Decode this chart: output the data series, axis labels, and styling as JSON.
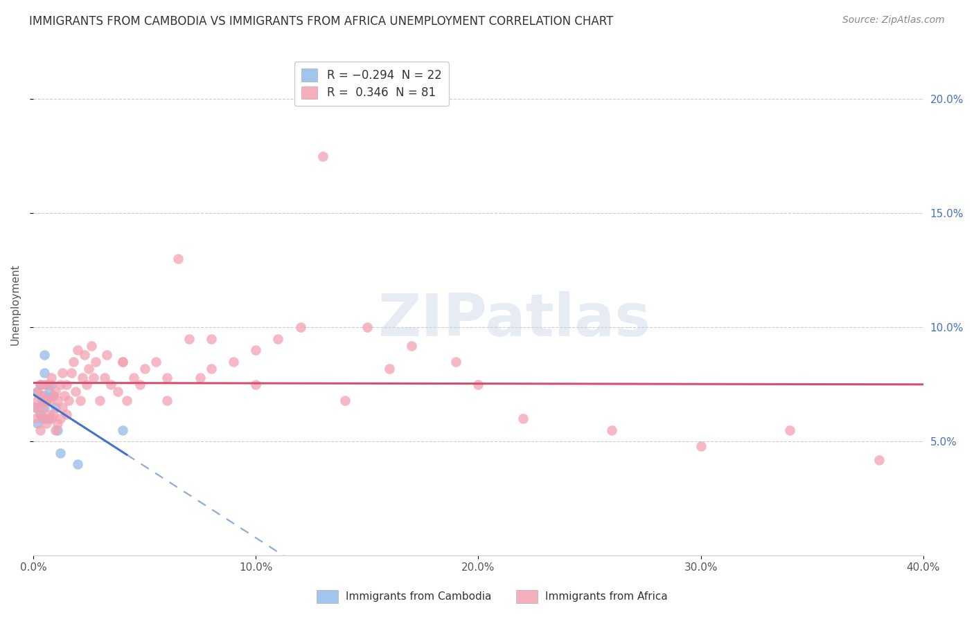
{
  "title": "IMMIGRANTS FROM CAMBODIA VS IMMIGRANTS FROM AFRICA UNEMPLOYMENT CORRELATION CHART",
  "source": "Source: ZipAtlas.com",
  "ylabel": "Unemployment",
  "xlim": [
    0.0,
    0.4
  ],
  "ylim": [
    0.0,
    0.22
  ],
  "yticks": [
    0.05,
    0.1,
    0.15,
    0.2
  ],
  "ytick_labels": [
    "5.0%",
    "10.0%",
    "15.0%",
    "20.0%"
  ],
  "xticks": [
    0.0,
    0.1,
    0.2,
    0.3,
    0.4
  ],
  "xtick_labels": [
    "0.0%",
    "10.0%",
    "20.0%",
    "30.0%",
    "40.0%"
  ],
  "legend_label_cambodia": "R = −0.294  N = 22",
  "legend_label_africa": "R =  0.346  N = 81",
  "R_cambodia": -0.294,
  "R_africa": 0.346,
  "cambodia_color": "#92bce8",
  "africa_color": "#f4a0b0",
  "line_cambodia_color": "#4472c4",
  "line_africa_color": "#d45070",
  "watermark": "ZIPatlas",
  "title_fontsize": 12,
  "source_fontsize": 10,
  "tick_fontsize": 11,
  "legend_fontsize": 12,
  "ylabel_fontsize": 11,
  "cambodia_x": [
    0.001,
    0.002,
    0.002,
    0.003,
    0.003,
    0.004,
    0.004,
    0.005,
    0.005,
    0.005,
    0.006,
    0.006,
    0.007,
    0.007,
    0.008,
    0.009,
    0.01,
    0.011,
    0.012,
    0.04,
    0.005,
    0.02
  ],
  "cambodia_y": [
    0.065,
    0.072,
    0.058,
    0.075,
    0.062,
    0.068,
    0.06,
    0.07,
    0.08,
    0.065,
    0.068,
    0.075,
    0.072,
    0.06,
    0.075,
    0.07,
    0.065,
    0.055,
    0.045,
    0.055,
    0.088,
    0.04
  ],
  "africa_x": [
    0.001,
    0.001,
    0.002,
    0.002,
    0.003,
    0.003,
    0.003,
    0.004,
    0.004,
    0.005,
    0.005,
    0.005,
    0.006,
    0.006,
    0.007,
    0.007,
    0.007,
    0.008,
    0.008,
    0.009,
    0.009,
    0.01,
    0.01,
    0.011,
    0.011,
    0.012,
    0.012,
    0.013,
    0.013,
    0.014,
    0.015,
    0.015,
    0.016,
    0.017,
    0.018,
    0.019,
    0.02,
    0.021,
    0.022,
    0.023,
    0.024,
    0.025,
    0.026,
    0.027,
    0.028,
    0.03,
    0.032,
    0.033,
    0.035,
    0.038,
    0.04,
    0.042,
    0.045,
    0.048,
    0.05,
    0.055,
    0.06,
    0.065,
    0.07,
    0.075,
    0.08,
    0.09,
    0.1,
    0.11,
    0.12,
    0.13,
    0.15,
    0.17,
    0.19,
    0.04,
    0.06,
    0.08,
    0.1,
    0.14,
    0.16,
    0.2,
    0.22,
    0.26,
    0.3,
    0.34,
    0.38
  ],
  "africa_y": [
    0.065,
    0.06,
    0.068,
    0.072,
    0.062,
    0.075,
    0.055,
    0.065,
    0.07,
    0.06,
    0.068,
    0.075,
    0.058,
    0.068,
    0.062,
    0.075,
    0.068,
    0.06,
    0.078,
    0.062,
    0.07,
    0.055,
    0.072,
    0.058,
    0.068,
    0.06,
    0.075,
    0.065,
    0.08,
    0.07,
    0.062,
    0.075,
    0.068,
    0.08,
    0.085,
    0.072,
    0.09,
    0.068,
    0.078,
    0.088,
    0.075,
    0.082,
    0.092,
    0.078,
    0.085,
    0.068,
    0.078,
    0.088,
    0.075,
    0.072,
    0.085,
    0.068,
    0.078,
    0.075,
    0.082,
    0.085,
    0.078,
    0.13,
    0.095,
    0.078,
    0.082,
    0.085,
    0.09,
    0.095,
    0.1,
    0.175,
    0.1,
    0.092,
    0.085,
    0.085,
    0.068,
    0.095,
    0.075,
    0.068,
    0.082,
    0.075,
    0.06,
    0.055,
    0.048,
    0.055,
    0.042
  ]
}
